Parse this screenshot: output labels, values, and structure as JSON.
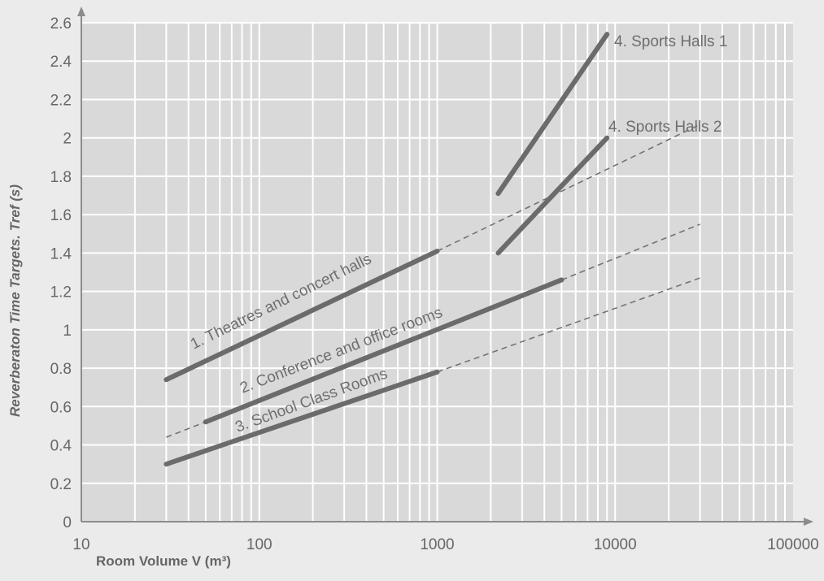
{
  "chart_data": {
    "type": "line",
    "x_scale": "log",
    "xlim": [
      10,
      100000
    ],
    "ylim": [
      0,
      2.6
    ],
    "grid": true,
    "xlabel": "Room Volume V (m³)",
    "ylabel": "Reverberaton Time Targets. Tref (s)",
    "x_ticks": [
      "10",
      "100",
      "1000",
      "10000",
      "100000"
    ],
    "y_ticks": [
      "0",
      "0.2",
      "0.4",
      "0.6",
      "0.8",
      "1",
      "1.2",
      "1.4",
      "1.6",
      "1.8",
      "2",
      "2.2",
      "2.4",
      "2.6"
    ],
    "series": [
      {
        "name": "1. Theatres and concert halls",
        "solid": [
          [
            30,
            0.74
          ],
          [
            1000,
            1.41
          ]
        ],
        "dashed": [
          [
            1000,
            1.41
          ],
          [
            30000,
            2.07
          ]
        ]
      },
      {
        "name": "2. Conference and office rooms",
        "solid": [
          [
            50,
            0.52
          ],
          [
            5000,
            1.26
          ]
        ],
        "dashed": [
          [
            30,
            0.44
          ],
          [
            50,
            0.52
          ]
        ],
        "dashed_ext": [
          [
            5000,
            1.26
          ],
          [
            30000,
            1.55
          ]
        ]
      },
      {
        "name": "3. School Class Rooms",
        "solid": [
          [
            30,
            0.3
          ],
          [
            1000,
            0.78
          ]
        ],
        "dashed": [
          [
            1000,
            0.78
          ],
          [
            30000,
            1.27
          ]
        ]
      },
      {
        "name": "4. Sports Halls 1",
        "solid": [
          [
            2200,
            1.71
          ],
          [
            9000,
            2.54
          ]
        ]
      },
      {
        "name": "4. Sports Halls 2",
        "solid": [
          [
            2200,
            1.4
          ],
          [
            9000,
            2.0
          ]
        ]
      }
    ]
  }
}
